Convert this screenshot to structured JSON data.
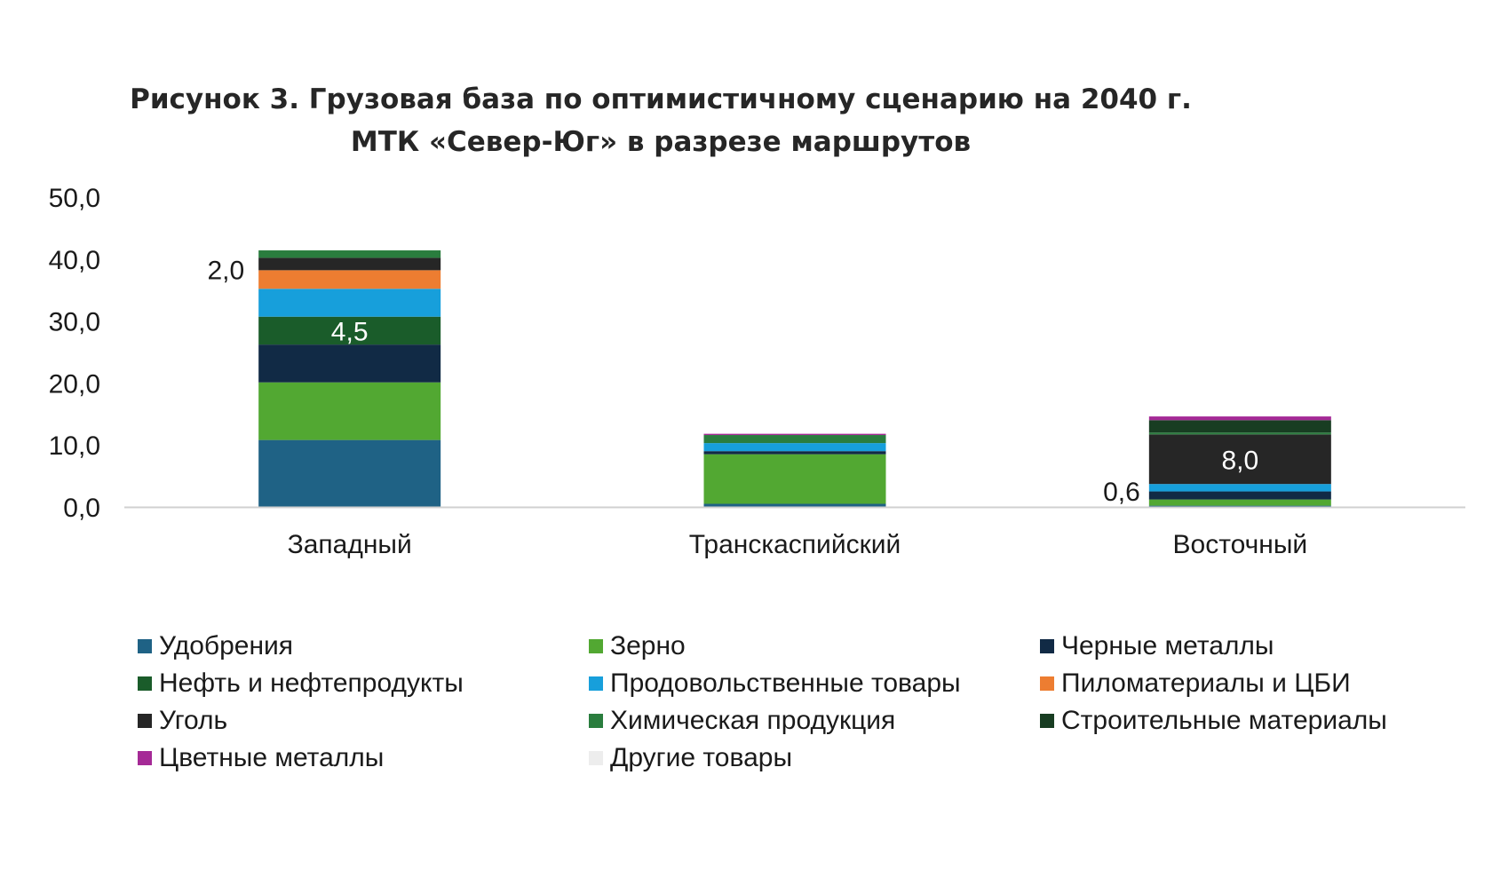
{
  "chart_data": {
    "type": "bar",
    "stacked": true,
    "title_lines": [
      "Рисунок 3. Грузовая база по оптимистичному сценарию на 2040 г.",
      "МТК «Север-Юг» в разрезе маршрутов"
    ],
    "xlabel": "",
    "ylabel": "",
    "categories": [
      "Западный",
      "Транскаспийский",
      "Восточный"
    ],
    "ylim": [
      0,
      50
    ],
    "yticks": [
      0,
      10,
      20,
      30,
      40,
      50
    ],
    "ytick_labels": [
      "0,0",
      "10,0",
      "20,0",
      "30,0",
      "40,0",
      "50,0"
    ],
    "grid": false,
    "legend_position": "bottom",
    "series": [
      {
        "name": "Удобрения",
        "color": "#1f6285",
        "values": [
          10.8,
          0.5,
          0.2
        ]
      },
      {
        "name": "Зерно",
        "color": "#52a832",
        "values": [
          9.3,
          8.0,
          1.0
        ]
      },
      {
        "name": "Черные металлы",
        "color": "#112a45",
        "values": [
          6.1,
          0.5,
          1.3
        ]
      },
      {
        "name": "Нефть и нефтепродукты",
        "color": "#1a5c2a",
        "values": [
          4.5,
          0.0,
          0.0
        ]
      },
      {
        "name": "Продовольственные товары",
        "color": "#179fdb",
        "values": [
          4.5,
          1.3,
          1.2
        ]
      },
      {
        "name": "Пиломатериалы и ЦБИ",
        "color": "#ed7d31",
        "values": [
          3.0,
          0.0,
          0.0
        ]
      },
      {
        "name": "Уголь",
        "color": "#262626",
        "values": [
          2.0,
          0.0,
          8.0
        ]
      },
      {
        "name": "Химическая продукция",
        "color": "#2a7d3e",
        "values": [
          1.2,
          1.3,
          0.3
        ]
      },
      {
        "name": "Строительные материалы",
        "color": "#183d22",
        "values": [
          0.0,
          0.0,
          2.0
        ]
      },
      {
        "name": "Цветные металлы",
        "color": "#a52a96",
        "values": [
          0.0,
          0.2,
          0.6
        ]
      },
      {
        "name": "Другие товары",
        "color": "#ededed",
        "values": [
          0.0,
          0.0,
          0.0
        ]
      }
    ],
    "data_labels": [
      {
        "category": "Западный",
        "series": "Уголь",
        "text": "2,0",
        "placement": "outside-left"
      },
      {
        "category": "Западный",
        "series": "Нефть и нефтепродукты",
        "text": "4,5",
        "placement": "inside"
      },
      {
        "category": "Восточный",
        "series": "Уголь",
        "text": "8,0",
        "placement": "inside"
      },
      {
        "category": "Восточный",
        "series": "Цветные металлы",
        "text": "0,6",
        "placement": "outside-left-bottom"
      }
    ],
    "label_text_colors": {
      "inside": "#ffffff",
      "outside": "#1a1a1a"
    },
    "axis_color": "#d0d0d0",
    "tick_text_color": "#1a1a1a"
  }
}
